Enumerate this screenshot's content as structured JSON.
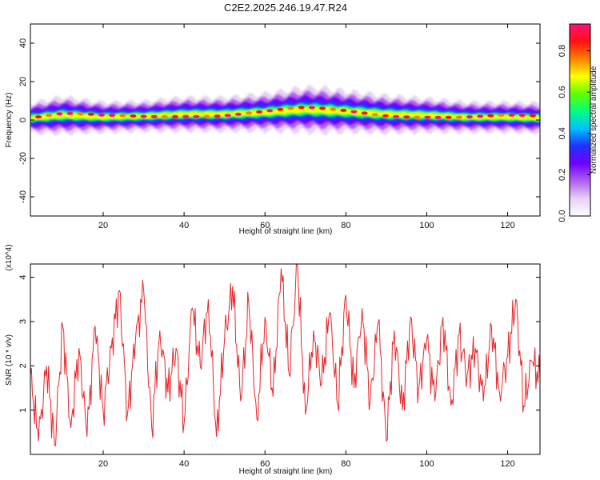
{
  "title": "C2E2.2025.246.19.47.R24",
  "chart_data": [
    {
      "type": "heatmap",
      "xlabel": "Height of straight line (km)",
      "ylabel": "Frequency (Hz)",
      "xlim": [
        2,
        128
      ],
      "ylim": [
        -50,
        50
      ],
      "x_ticks": [
        20,
        40,
        60,
        80,
        100,
        120
      ],
      "y_ticks": [
        -40,
        -20,
        0,
        20,
        40
      ],
      "y_tick_labels": [
        "-40",
        "-20",
        "0",
        "20",
        "40"
      ],
      "grid": false,
      "colorbar": {
        "label": "Normalized spectral amplitude",
        "range": [
          0.0,
          0.93
        ],
        "ticks": [
          0.0,
          0.2,
          0.4,
          0.6,
          0.8
        ],
        "tick_labels": [
          "0.0",
          "0.2",
          "0.4",
          "0.6",
          "0.8"
        ],
        "colors": [
          "#ffffff",
          "#e6d0f5",
          "#b060f0",
          "#7000ff",
          "#2030ff",
          "#00c0ff",
          "#00ff80",
          "#60ff00",
          "#ffff00",
          "#ff8000",
          "#ff1010",
          "#ff1078"
        ]
      },
      "ridge": {
        "x": [
          2,
          10,
          20,
          30,
          40,
          50,
          60,
          70,
          75,
          80,
          90,
          100,
          110,
          120,
          128
        ],
        "center_frequency": [
          1,
          2.5,
          1.5,
          2,
          3,
          3,
          4,
          5.5,
          5,
          4.5,
          3,
          2.5,
          1.5,
          1.5,
          1
        ],
        "half_width": [
          4,
          5,
          4,
          4,
          4.5,
          4.5,
          5,
          6,
          6,
          5.5,
          5,
          4.5,
          4,
          4,
          4
        ],
        "peak_amplitude": 0.93
      }
    },
    {
      "type": "line",
      "xlabel": "Height of straight line (km)",
      "ylabel": "SNR (10 * v/v)",
      "y_multiplier": "(x10^4)",
      "xlim": [
        2,
        128
      ],
      "ylim": [
        0,
        4.3
      ],
      "x_ticks": [
        20,
        40,
        60,
        80,
        100,
        120
      ],
      "y_ticks": [
        1,
        2,
        3,
        4
      ],
      "series": [
        {
          "color": "#e8262a",
          "x": [
            2,
            4,
            6,
            8,
            10,
            12,
            14,
            16,
            18,
            20,
            22,
            24,
            26,
            28,
            30,
            32,
            34,
            36,
            38,
            40,
            42,
            44,
            46,
            48,
            50,
            52,
            54,
            56,
            58,
            60,
            62,
            64,
            66,
            68,
            70,
            72,
            74,
            76,
            78,
            80,
            82,
            84,
            86,
            88,
            90,
            92,
            94,
            96,
            98,
            100,
            102,
            104,
            106,
            108,
            110,
            112,
            114,
            116,
            118,
            120,
            122,
            124,
            126,
            128
          ],
          "values": [
            1.8,
            0.3,
            2.0,
            0.2,
            2.9,
            0.6,
            2.4,
            0.4,
            2.9,
            1.0,
            2.4,
            3.7,
            0.9,
            2.6,
            3.7,
            0.6,
            2.8,
            1.4,
            2.4,
            0.7,
            3.3,
            2.0,
            3.5,
            0.4,
            2.6,
            3.8,
            1.2,
            3.4,
            0.8,
            3.1,
            1.3,
            4.2,
            1.8,
            4.3,
            0.9,
            2.8,
            1.6,
            3.2,
            1.1,
            3.6,
            1.5,
            3.3,
            1.2,
            3.0,
            0.3,
            2.8,
            1.0,
            3.1,
            1.5,
            2.6,
            1.2,
            3.1,
            1.1,
            2.7,
            1.8,
            2.4,
            1.2,
            2.9,
            1.4,
            2.2,
            3.5,
            1.1,
            2.1,
            1.7
          ]
        }
      ]
    }
  ]
}
